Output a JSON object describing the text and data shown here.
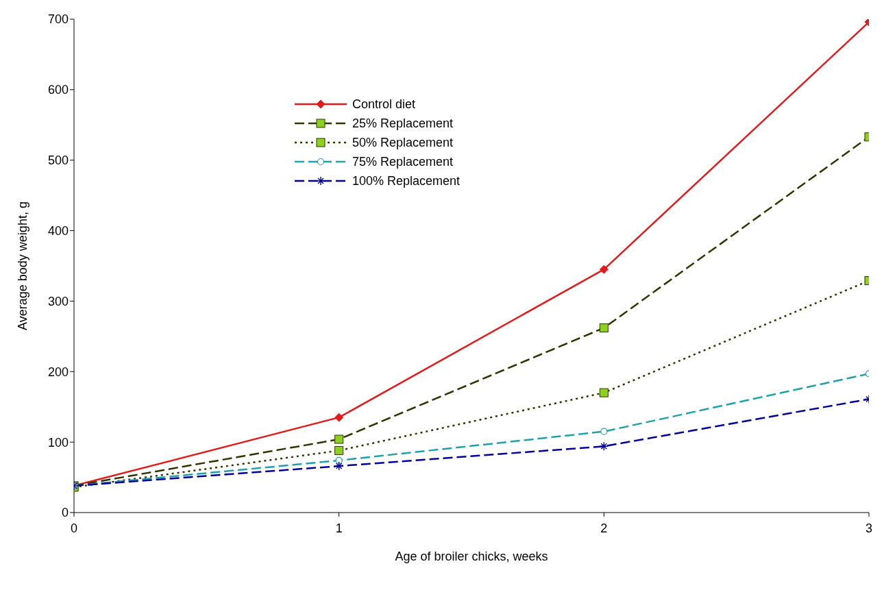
{
  "chart_data": {
    "type": "line",
    "xlabel": "Age of broiler chicks, weeks",
    "ylabel": "Average body weight, g",
    "x": [
      0,
      1,
      2,
      3
    ],
    "xlim": [
      0,
      3
    ],
    "xticks": [
      0,
      1,
      2,
      3
    ],
    "ylim": [
      0,
      700
    ],
    "yticks": [
      0,
      100,
      200,
      300,
      400,
      500,
      600,
      700
    ],
    "grid": false,
    "legend": "top left",
    "series": [
      {
        "name": "Control diet",
        "color": "#e01b1b",
        "marker": "diamond",
        "line_style": "solid",
        "values": [
          38,
          135,
          345,
          696
        ]
      },
      {
        "name": "25% Replacement",
        "color": "#333300",
        "marker": "square",
        "line_style": "dashed",
        "values": [
          38,
          104,
          262,
          533
        ]
      },
      {
        "name": "50% Replacement",
        "color": "#333300",
        "marker": "square",
        "line_style": "dotted",
        "values": [
          36,
          88,
          170,
          329
        ]
      },
      {
        "name": "75% Replacement",
        "color": "#20a0a8",
        "marker": "circle",
        "line_style": "dashed",
        "values": [
          38,
          74,
          115,
          197
        ]
      },
      {
        "name": "100% Replacement",
        "color": "#000099",
        "marker": "cross",
        "line_style": "dashed",
        "values": [
          38,
          66,
          94,
          161
        ]
      }
    ]
  }
}
